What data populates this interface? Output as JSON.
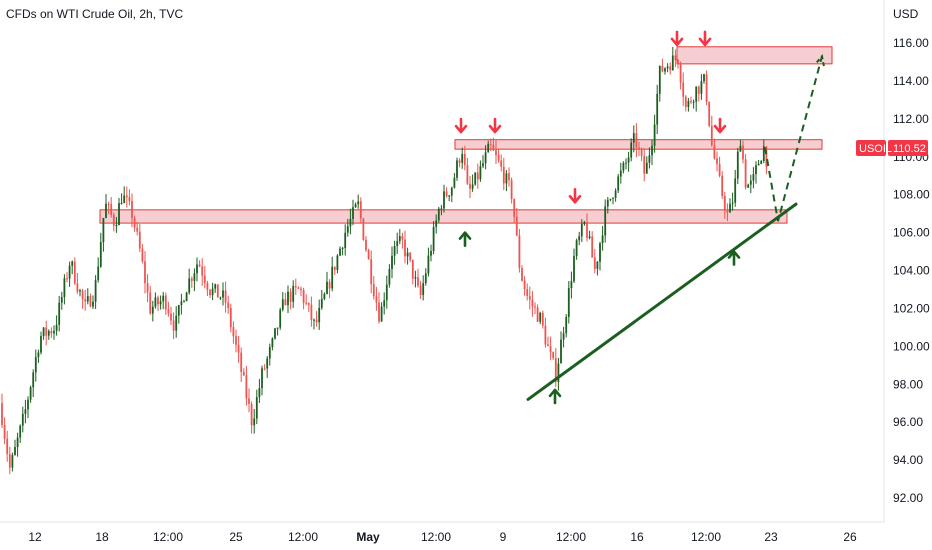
{
  "header": {
    "title": "CFDs on WTI Crude Oil, 2h, TVC",
    "currency": "USD"
  },
  "price_badge": {
    "symbol": "USOIL",
    "value": "110.52"
  },
  "colors": {
    "up": "#1b5e20",
    "down": "#ef5350",
    "zone_fill": "#f5c6c9",
    "zone_stroke": "#e53935",
    "arrow_red": "#f23645",
    "arrow_green": "#1b5e20",
    "trendline": "#1b5e20",
    "badge": "#f23645"
  },
  "chart_data": {
    "type": "candlestick",
    "title": "CFDs on WTI Crude Oil, 2h, TVC",
    "ylabel": "USD",
    "ylim": [
      91,
      117
    ],
    "y_ticks": [
      92,
      94,
      96,
      98,
      100,
      102,
      104,
      106,
      108,
      110,
      112,
      114,
      116
    ],
    "y_tick_labels": [
      "92.00",
      "94.00",
      "96.00",
      "98.00",
      "100.00",
      "102.00",
      "104.00",
      "106.00",
      "108.00",
      "110.00",
      "112.00",
      "114.00",
      "116.00"
    ],
    "x_tick_labels": [
      "12",
      "18",
      "12:00",
      "25",
      "12:00",
      "May",
      "12:00",
      "9",
      "12:00",
      "16",
      "12:00",
      "23",
      "26"
    ],
    "x_tick_bold": [
      false,
      false,
      false,
      false,
      false,
      true,
      false,
      false,
      false,
      false,
      false,
      false,
      false
    ],
    "last_price": 110.52,
    "price_path": [
      [
        0,
        97.0
      ],
      [
        10,
        93.5
      ],
      [
        25,
        96.5
      ],
      [
        40,
        100.5
      ],
      [
        55,
        101.0
      ],
      [
        70,
        104.5
      ],
      [
        85,
        102.0
      ],
      [
        95,
        103.0
      ],
      [
        105,
        107.5
      ],
      [
        115,
        106.5
      ],
      [
        122,
        108.0
      ],
      [
        132,
        107.0
      ],
      [
        140,
        105.0
      ],
      [
        150,
        102.0
      ],
      [
        165,
        102.5
      ],
      [
        175,
        101.0
      ],
      [
        185,
        103.0
      ],
      [
        198,
        104.5
      ],
      [
        210,
        103.0
      ],
      [
        225,
        102.5
      ],
      [
        240,
        99.0
      ],
      [
        252,
        96.0
      ],
      [
        262,
        98.5
      ],
      [
        272,
        100.0
      ],
      [
        285,
        102.5
      ],
      [
        300,
        103.0
      ],
      [
        315,
        101.0
      ],
      [
        330,
        103.5
      ],
      [
        345,
        106.0
      ],
      [
        358,
        107.5
      ],
      [
        365,
        105.5
      ],
      [
        372,
        103.5
      ],
      [
        380,
        101.5
      ],
      [
        392,
        105.0
      ],
      [
        402,
        105.5
      ],
      [
        412,
        104.0
      ],
      [
        420,
        102.5
      ],
      [
        430,
        105.0
      ],
      [
        440,
        107.5
      ],
      [
        452,
        108.5
      ],
      [
        462,
        110.5
      ],
      [
        468,
        108.0
      ],
      [
        478,
        109.0
      ],
      [
        490,
        110.5
      ],
      [
        500,
        109.5
      ],
      [
        512,
        108.0
      ],
      [
        520,
        104.0
      ],
      [
        528,
        102.5
      ],
      [
        540,
        101.5
      ],
      [
        550,
        99.5
      ],
      [
        556,
        98.5
      ],
      [
        565,
        101.5
      ],
      [
        575,
        105.0
      ],
      [
        585,
        106.5
      ],
      [
        595,
        104.0
      ],
      [
        605,
        107.0
      ],
      [
        615,
        108.5
      ],
      [
        625,
        109.5
      ],
      [
        635,
        111.0
      ],
      [
        645,
        109.0
      ],
      [
        652,
        111.0
      ],
      [
        660,
        114.5
      ],
      [
        670,
        115.0
      ],
      [
        678,
        115.2
      ],
      [
        686,
        112.5
      ],
      [
        695,
        113.5
      ],
      [
        705,
        114.0
      ],
      [
        712,
        110.5
      ],
      [
        720,
        108.5
      ],
      [
        728,
        106.8
      ],
      [
        734,
        108.0
      ],
      [
        740,
        111.2
      ],
      [
        746,
        108.5
      ],
      [
        752,
        108.5
      ],
      [
        760,
        110.0
      ],
      [
        764,
        110.5
      ],
      [
        768,
        109.5
      ]
    ],
    "resistance_zones": [
      {
        "from": 106.5,
        "to": 107.2,
        "x_start": 100,
        "x_end": 787
      },
      {
        "from": 110.4,
        "to": 110.9,
        "x_start": 455,
        "x_end": 822
      },
      {
        "from": 114.9,
        "to": 115.8,
        "x_start": 677,
        "x_end": 832
      }
    ],
    "trendline": [
      [
        528,
        97.2
      ],
      [
        796,
        107.5
      ]
    ],
    "projection": [
      [
        765,
        110.5
      ],
      [
        778,
        106.6
      ],
      [
        822,
        115.3
      ]
    ],
    "red_arrows": [
      [
        461,
        111.3
      ],
      [
        495,
        111.3
      ],
      [
        575,
        107.6
      ],
      [
        677,
        115.9
      ],
      [
        705,
        115.9
      ],
      [
        720,
        111.3
      ]
    ],
    "green_arrows": [
      [
        465,
        106.0
      ],
      [
        555,
        97.7
      ],
      [
        734,
        105.0
      ]
    ]
  }
}
